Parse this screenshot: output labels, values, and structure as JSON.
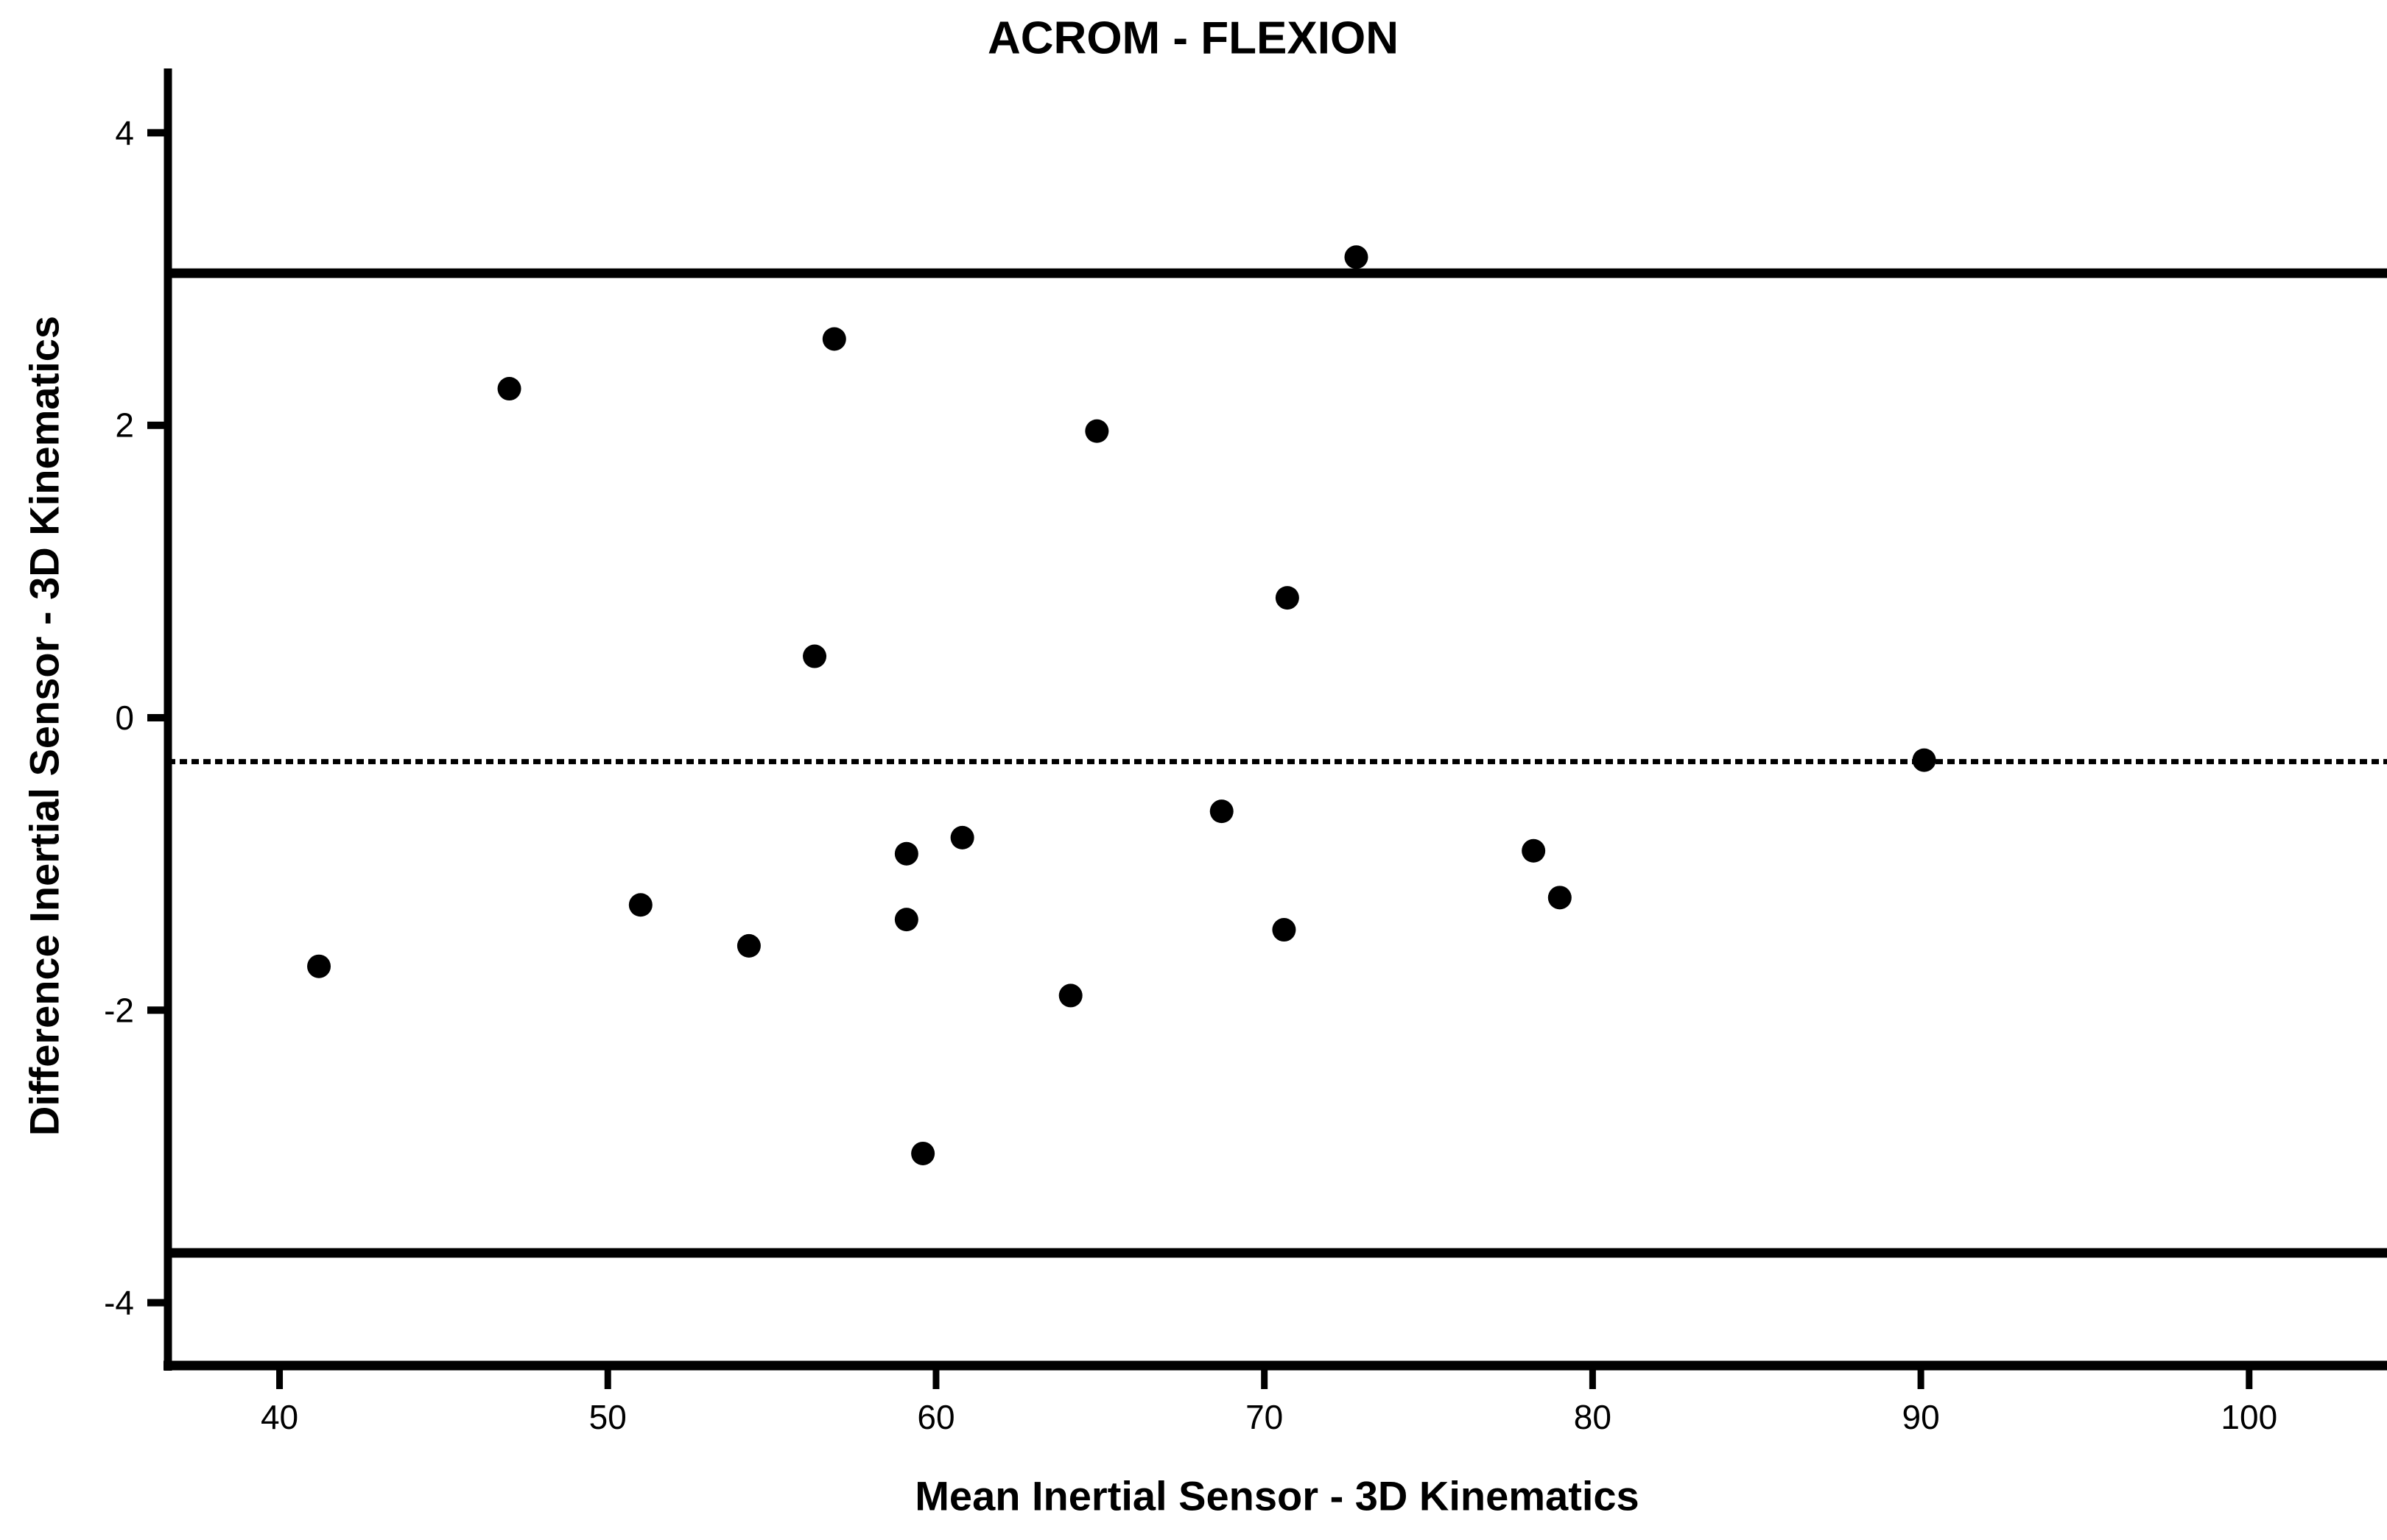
{
  "chart_data": {
    "type": "scatter",
    "title": "ACROM - FLEXION",
    "xlabel": "Mean Inertial Sensor - 3D Kinematics",
    "ylabel": "Difference Inertial Sensor - 3D Kinematics",
    "xlim": [
      36.6,
      104.2
    ],
    "ylim": [
      -4.43,
      4.44
    ],
    "x_ticks": [
      40,
      50,
      60,
      70,
      80,
      90,
      100
    ],
    "y_ticks": [
      -4,
      -2,
      0,
      2,
      4
    ],
    "grid": false,
    "legend": false,
    "points": [
      [
        41.2,
        -1.7
      ],
      [
        47.0,
        2.25
      ],
      [
        51.0,
        -1.28
      ],
      [
        54.3,
        -1.56
      ],
      [
        56.3,
        0.42
      ],
      [
        56.9,
        2.59
      ],
      [
        59.1,
        -0.93
      ],
      [
        59.1,
        -1.38
      ],
      [
        59.6,
        -2.98
      ],
      [
        60.8,
        -0.82
      ],
      [
        64.1,
        -1.9
      ],
      [
        64.9,
        1.96
      ],
      [
        68.7,
        -0.64
      ],
      [
        70.6,
        -1.45
      ],
      [
        70.7,
        0.82
      ],
      [
        72.8,
        3.15
      ],
      [
        78.2,
        -0.91
      ],
      [
        79.0,
        -1.23
      ],
      [
        90.1,
        -0.29
      ]
    ],
    "reference_lines": {
      "upper_loa": 3.04,
      "mean_difference": -0.3,
      "lower_loa": -3.66
    }
  },
  "colors": {
    "marker": "#000000",
    "line": "#000000",
    "background": "#ffffff"
  }
}
